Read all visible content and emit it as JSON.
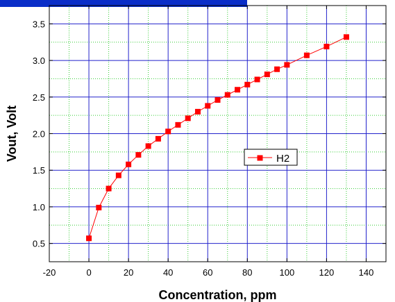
{
  "chart_data": {
    "type": "line",
    "title": "",
    "xlabel": "Concentration, ppm",
    "ylabel": "Vout, Volt",
    "xlim": [
      -20,
      150
    ],
    "ylim": [
      0.25,
      3.75
    ],
    "xticks": [
      -20,
      0,
      20,
      40,
      60,
      80,
      100,
      120,
      140
    ],
    "yticks": [
      0.5,
      1.0,
      1.5,
      2.0,
      2.5,
      3.0,
      3.5
    ],
    "xtick_labels": [
      "-20",
      "0",
      "20",
      "40",
      "60",
      "80",
      "100",
      "120",
      "140"
    ],
    "ytick_labels": [
      "0.5",
      "1.0",
      "1.5",
      "2.0",
      "2.5",
      "3.0",
      "3.5"
    ],
    "grid": true,
    "legend_position": "center-right",
    "series": [
      {
        "name": "H2",
        "color": "#ff0000",
        "marker": "square",
        "x": [
          0,
          5,
          10,
          15,
          20,
          25,
          30,
          35,
          40,
          45,
          50,
          55,
          60,
          65,
          70,
          75,
          80,
          85,
          90,
          95,
          100,
          110,
          120,
          130
        ],
        "y": [
          0.57,
          0.99,
          1.25,
          1.43,
          1.58,
          1.71,
          1.83,
          1.93,
          2.03,
          2.12,
          2.21,
          2.3,
          2.38,
          2.46,
          2.53,
          2.6,
          2.67,
          2.74,
          2.81,
          2.88,
          2.94,
          3.07,
          3.19,
          3.32
        ]
      }
    ]
  },
  "banner_color": "#0a2ec8",
  "grid_major_color": "#2222cc",
  "grid_minor_color": "#33cc33"
}
